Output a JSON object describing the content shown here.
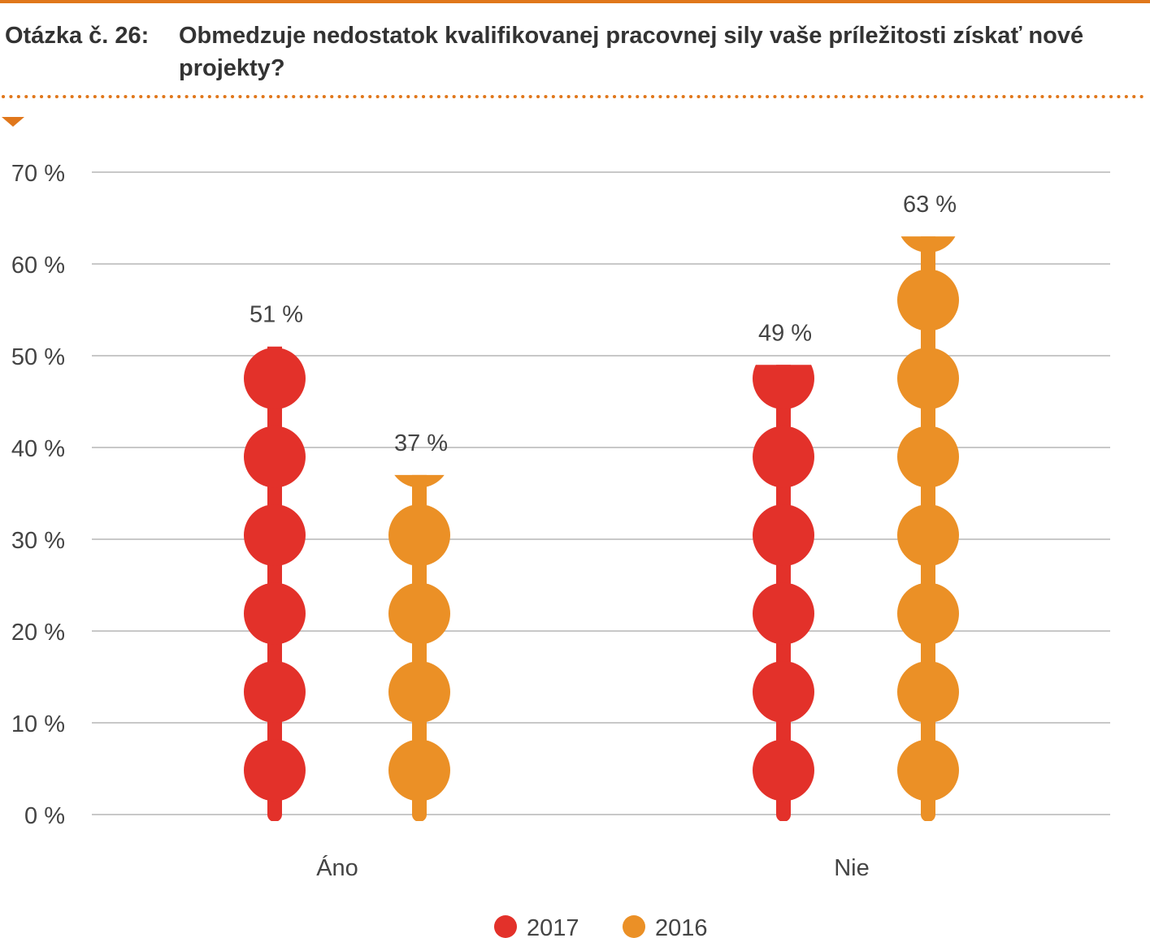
{
  "header": {
    "prefix": "Otázka č. 26:",
    "question": "Obmedzuje nedostatok kvalifikovanej pracovnej sily vaše príležitosti získať nové projekty?"
  },
  "colors": {
    "accent": "#e0771b",
    "series_2017": "#e3312a",
    "series_2016": "#eb9026",
    "grid": "#c8c8c8",
    "text": "#444444"
  },
  "chart_data": {
    "type": "bar",
    "title": "Obmedzuje nedostatok kvalifikovanej pracovnej sily vaše príležitosti získať nové projekty?",
    "xlabel": "",
    "ylabel": "",
    "ylim": [
      0,
      70
    ],
    "y_ticks": [
      0,
      10,
      20,
      30,
      40,
      50,
      60,
      70
    ],
    "y_tick_suffix": " %",
    "categories": [
      "Áno",
      "Nie"
    ],
    "series": [
      {
        "name": "2017",
        "values": [
          51,
          49
        ],
        "labels": [
          "51 %",
          "49 %"
        ]
      },
      {
        "name": "2016",
        "values": [
          37,
          63
        ],
        "labels": [
          "37 %",
          "63 %"
        ]
      }
    ],
    "grid": true,
    "legend": "bottom-center"
  }
}
